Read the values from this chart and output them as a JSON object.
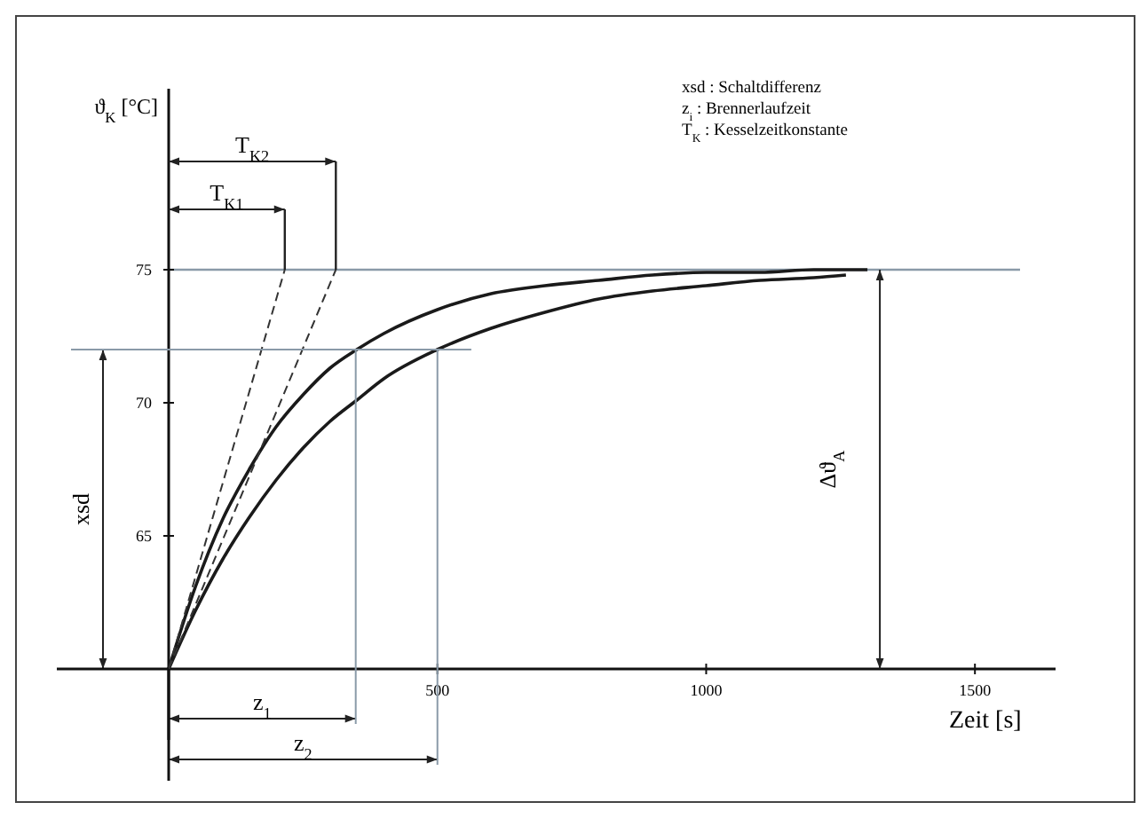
{
  "chart_data": {
    "type": "line",
    "xlabel": "Zeit [s]",
    "ylabel": "ϑ$_{K}$ [°C]",
    "xlim": [
      0,
      1650
    ],
    "ylim": [
      60,
      81.8
    ],
    "xticks": [
      500,
      1000,
      1500
    ],
    "yticks": [
      65,
      70,
      75
    ],
    "grid": false,
    "marker": "none",
    "series": [
      {
        "color": "#1a1a1a",
        "x": [
          0,
          50,
          100,
          150,
          200,
          250,
          300,
          350,
          400,
          500,
          600,
          700,
          800,
          900,
          1000,
          1100,
          1200,
          1300
        ],
        "values": [
          60,
          63.1,
          65.6,
          67.5,
          69.1,
          70.3,
          71.3,
          72.0,
          72.6,
          73.5,
          74.1,
          74.4,
          74.6,
          74.8,
          74.9,
          74.9,
          75,
          75
        ]
      },
      {
        "color": "#1a1a1a",
        "x": [
          0,
          50,
          100,
          150,
          200,
          250,
          300,
          350,
          400,
          500,
          600,
          700,
          800,
          900,
          1000,
          1100,
          1200,
          1260
        ],
        "values": [
          60,
          62.2,
          64.1,
          65.7,
          67.1,
          68.3,
          69.3,
          70.1,
          70.9,
          72.0,
          72.8,
          73.4,
          73.9,
          74.2,
          74.4,
          74.6,
          74.7,
          74.8
        ]
      },
      {
        "color": "#333333",
        "line_style": "dashed",
        "x": [
          0,
          216
        ],
        "values": [
          60,
          75
        ]
      },
      {
        "color": "#333333",
        "line_style": "dashed",
        "x": [
          0,
          311
        ],
        "values": [
          60,
          75
        ]
      },
      {
        "color": "#8a9aa8",
        "x": [
          348,
          348
        ],
        "values": [
          60,
          72
        ]
      },
      {
        "color": "#8a9aa8",
        "x": [
          500,
          500
        ],
        "values": [
          60,
          72
        ]
      },
      {
        "color": "#8a9aa8",
        "x": [
          0,
          563
        ],
        "values": [
          72,
          72
        ]
      }
    ],
    "ref_lines": [
      {
        "axis": "y",
        "value": 75,
        "color": "#8a9aa8"
      }
    ],
    "annotations": [
      "T$_{K1}$",
      "T$_{K2}$",
      "z$_{1}$",
      "z$_{2}$",
      "xsd",
      "Δϑ$_{A}$",
      "xsd  :  Schaltdifferenz",
      "z$_{i}$  :  Brennerlaufzeit",
      "T$_{K}$  :  Kesselzeitkonstante"
    ]
  }
}
